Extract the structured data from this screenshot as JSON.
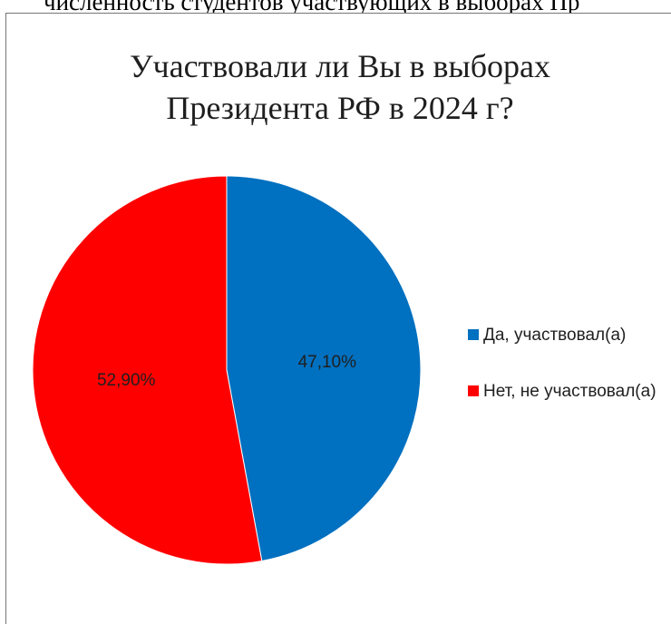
{
  "top_text": "численность студентов участвующих в выборах Пр",
  "chart_data": {
    "type": "pie",
    "title_lines": [
      "Участвовали ли Вы в выборах",
      "Президента РФ в 2024 г?"
    ],
    "categories": [
      "Да, участвовал(а)",
      "Нет, не участвовал(а)"
    ],
    "values": [
      47.1,
      52.9
    ],
    "labels": [
      "47,10%",
      "52,90%"
    ],
    "colors": [
      "#0070C0",
      "#FF0000"
    ],
    "legend_position": "right"
  },
  "legend": {
    "items": [
      {
        "label": "Да, участвовал(а)",
        "color": "#0070C0"
      },
      {
        "label": "Нет, не участвовал(а)",
        "color": "#FF0000"
      }
    ]
  }
}
